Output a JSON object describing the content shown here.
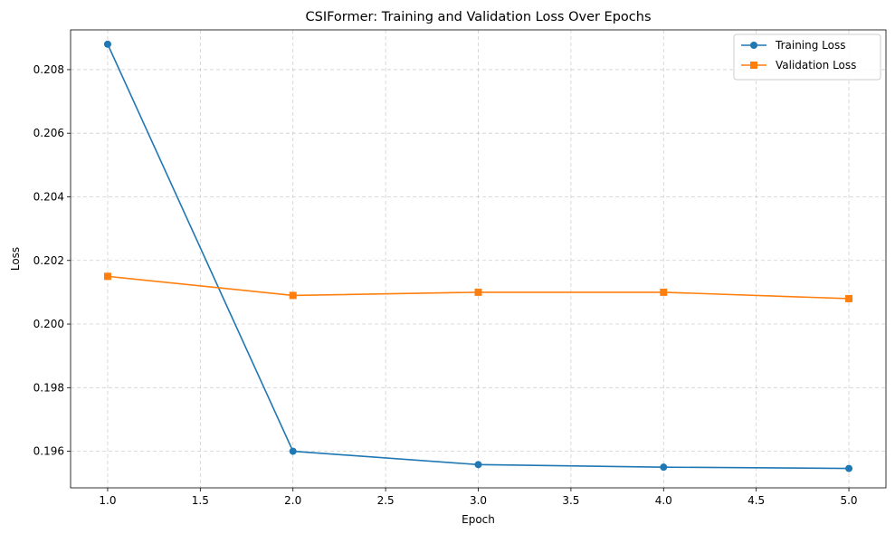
{
  "chart_data": {
    "type": "line",
    "title": "CSIFormer: Training and Validation Loss Over Epochs",
    "xlabel": "Epoch",
    "ylabel": "Loss",
    "x": [
      1,
      2,
      3,
      4,
      5
    ],
    "xlim": [
      0.8,
      5.2
    ],
    "ylim": [
      0.19485,
      0.20925
    ],
    "xticks": [
      1.0,
      1.5,
      2.0,
      2.5,
      3.0,
      3.5,
      4.0,
      4.5,
      5.0
    ],
    "xtick_labels": [
      "1.0",
      "1.5",
      "2.0",
      "2.5",
      "3.0",
      "3.5",
      "4.0",
      "4.5",
      "5.0"
    ],
    "yticks": [
      0.196,
      0.198,
      0.2,
      0.202,
      0.204,
      0.206,
      0.208
    ],
    "ytick_labels": [
      "0.196",
      "0.198",
      "0.200",
      "0.202",
      "0.204",
      "0.206",
      "0.208"
    ],
    "grid": true,
    "legend_position": "top-right",
    "series": [
      {
        "name": "Training Loss",
        "values": [
          0.2088,
          0.196,
          0.19558,
          0.1955,
          0.19546
        ],
        "color": "#1f77b4",
        "marker": "circle"
      },
      {
        "name": "Validation Loss",
        "values": [
          0.2015,
          0.2009,
          0.201,
          0.201,
          0.2008
        ],
        "color": "#ff7f0e",
        "marker": "square"
      }
    ]
  }
}
